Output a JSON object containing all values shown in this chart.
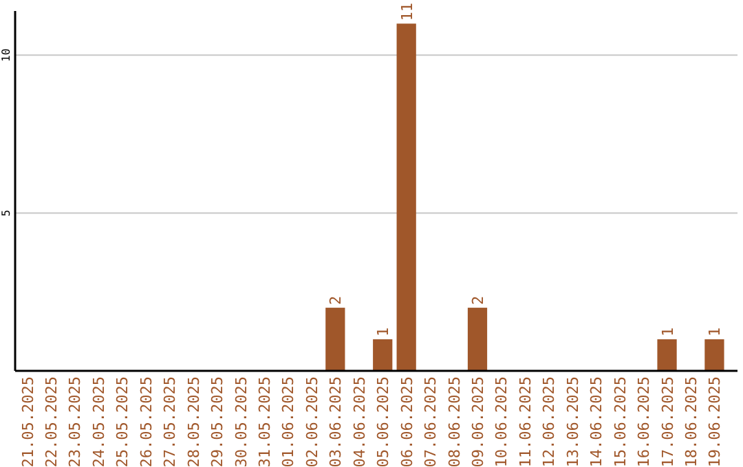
{
  "chart_data": {
    "type": "bar",
    "categories": [
      "21.05.2025",
      "22.05.2025",
      "23.05.2025",
      "24.05.2025",
      "25.05.2025",
      "26.05.2025",
      "27.05.2025",
      "28.05.2025",
      "29.05.2025",
      "30.05.2025",
      "31.05.2025",
      "01.06.2025",
      "02.06.2025",
      "03.06.2025",
      "04.06.2025",
      "05.06.2025",
      "06.06.2025",
      "07.06.2025",
      "08.06.2025",
      "09.06.2025",
      "10.06.2025",
      "11.06.2025",
      "12.06.2025",
      "13.06.2025",
      "14.06.2025",
      "15.06.2025",
      "16.06.2025",
      "17.06.2025",
      "18.06.2025",
      "19.06.2025"
    ],
    "values": [
      0,
      0,
      0,
      0,
      0,
      0,
      0,
      0,
      0,
      0,
      0,
      0,
      0,
      2,
      0,
      1,
      11,
      0,
      0,
      2,
      0,
      0,
      0,
      0,
      0,
      0,
      0,
      1,
      0,
      1
    ],
    "value_labels": [
      null,
      null,
      null,
      null,
      null,
      null,
      null,
      null,
      null,
      null,
      null,
      null,
      null,
      "2",
      null,
      "1",
      "11",
      null,
      null,
      "2",
      null,
      null,
      null,
      null,
      null,
      null,
      null,
      "1",
      null,
      "1"
    ],
    "color": "#a0572a",
    "ylim": [
      0,
      11.4
    ],
    "yticks": [
      5,
      10
    ],
    "grid": "y"
  }
}
